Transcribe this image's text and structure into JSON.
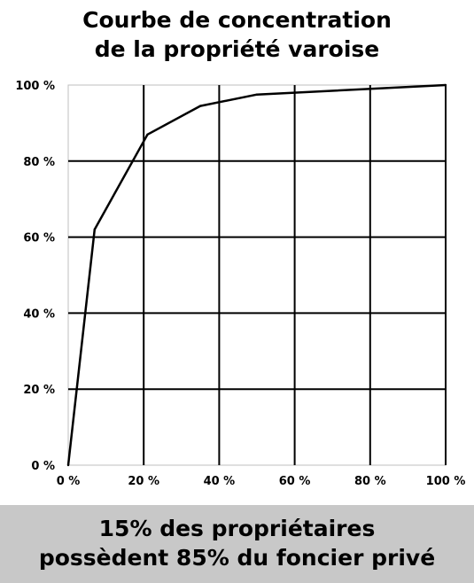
{
  "title": {
    "line1": "Courbe de concentration",
    "line2": "de la propriété varoise"
  },
  "banner": {
    "line1": "15% des propriétaires",
    "line2": "possèdent 85% du foncier privé"
  },
  "colors": {
    "line": "#000000",
    "grid": "#000000",
    "banner_background": "#c8c8c8"
  },
  "chart_data": {
    "type": "line",
    "title": "Courbe de concentration de la propriété varoise",
    "xlabel": "",
    "ylabel": "",
    "xlim": [
      0,
      100
    ],
    "ylim": [
      0,
      100
    ],
    "grid": true,
    "x_tick_labels": [
      "0 %",
      "20 %",
      "40 %",
      "60 %",
      "80 %",
      "100 %"
    ],
    "y_tick_labels": [
      "0 %",
      "20 %",
      "40 %",
      "60 %",
      "80 %",
      "100 %"
    ],
    "x_ticks": [
      0,
      20,
      40,
      60,
      80,
      100
    ],
    "y_ticks": [
      0,
      20,
      40,
      60,
      80,
      100
    ],
    "series": [
      {
        "x": [
          0,
          7,
          21,
          35,
          50,
          100
        ],
        "y": [
          0,
          62,
          87,
          94.5,
          97.5,
          100
        ]
      }
    ]
  }
}
